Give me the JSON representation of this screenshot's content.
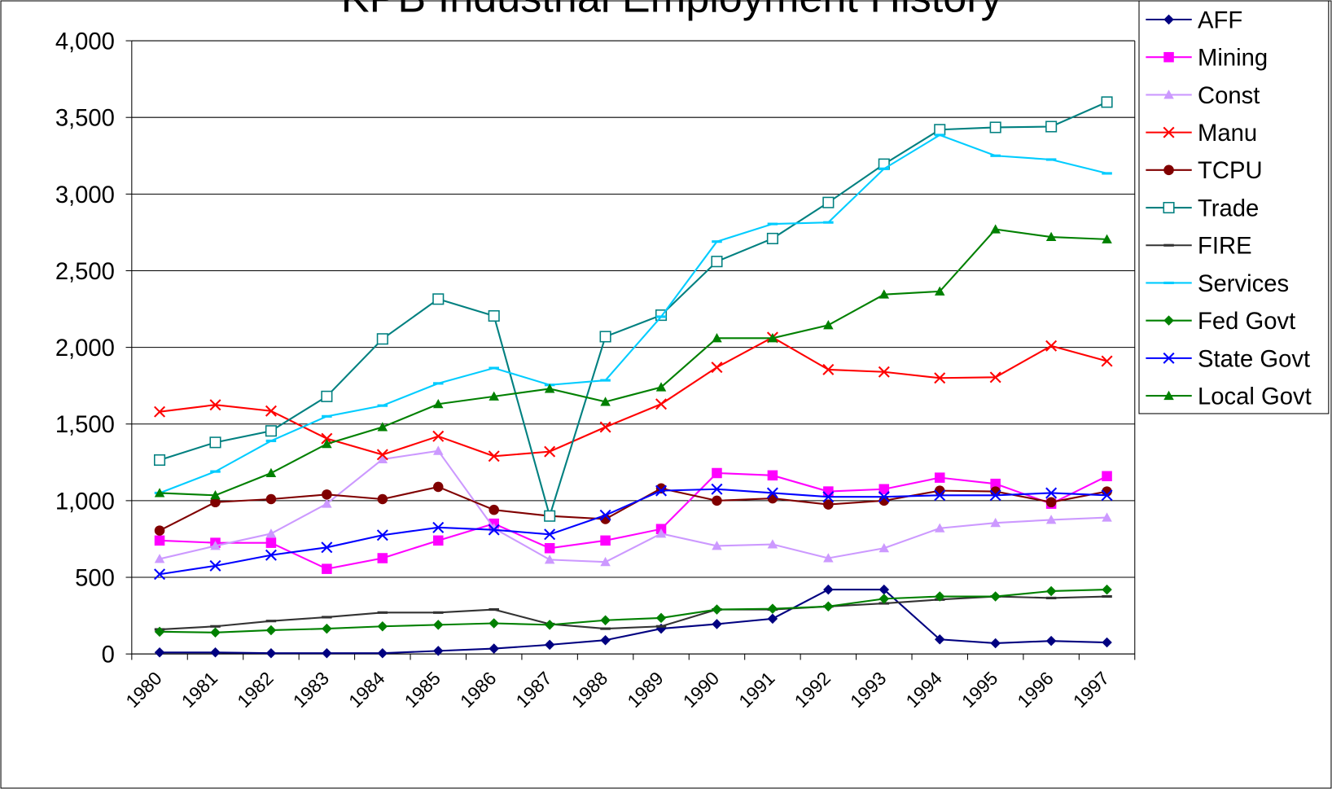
{
  "chart_data": {
    "type": "line",
    "title": "KPB Industrial Employment History",
    "categories": [
      "1980",
      "1981",
      "1982",
      "1983",
      "1984",
      "1985",
      "1986",
      "1987",
      "1988",
      "1989",
      "1990",
      "1991",
      "1992",
      "1993",
      "1994",
      "1995",
      "1996",
      "1997"
    ],
    "ylim": [
      0,
      4000
    ],
    "yticks": [
      0,
      500,
      {
        "value": 1000,
        "label": "1,000"
      },
      {
        "value": 1500,
        "label": "1,500"
      },
      {
        "value": 2000,
        "label": "2,000"
      },
      {
        "value": 2500,
        "label": "2,500"
      },
      {
        "value": 3000,
        "label": "3,000"
      },
      {
        "value": 3500,
        "label": "3,500"
      },
      {
        "value": 4000,
        "label": "4,000"
      }
    ],
    "grid": true,
    "legend": "right",
    "series": [
      {
        "name": "AFF",
        "color": "#000080",
        "marker": "diamond",
        "values": [
          10,
          10,
          5,
          5,
          5,
          20,
          35,
          60,
          90,
          165,
          195,
          230,
          420,
          420,
          95,
          70,
          85,
          75
        ]
      },
      {
        "name": "Mining",
        "color": "#ff00ff",
        "marker": "square",
        "values": [
          740,
          725,
          725,
          555,
          625,
          740,
          850,
          690,
          740,
          815,
          1180,
          1165,
          1060,
          1075,
          1150,
          1110,
          980,
          1160
        ]
      },
      {
        "name": "Const",
        "color": "#cc99ff",
        "marker": "triangle",
        "values": [
          620,
          705,
          785,
          980,
          1270,
          1325,
          820,
          615,
          600,
          785,
          705,
          715,
          625,
          690,
          820,
          855,
          875,
          890
        ]
      },
      {
        "name": "Manu",
        "color": "#ff0000",
        "marker": "x",
        "values": [
          1580,
          1625,
          1585,
          1405,
          1300,
          1420,
          1290,
          1320,
          1480,
          1630,
          1870,
          2065,
          1855,
          1840,
          1800,
          1805,
          2010,
          1910
        ]
      },
      {
        "name": "TCPU",
        "color": "#800000",
        "marker": "circle",
        "values": [
          805,
          990,
          1010,
          1040,
          1010,
          1090,
          940,
          900,
          880,
          1080,
          1000,
          1015,
          975,
          1000,
          1065,
          1060,
          990,
          1060
        ]
      },
      {
        "name": "Trade",
        "color": "#008080",
        "marker": "open-square",
        "values": [
          1265,
          1380,
          1455,
          1680,
          2055,
          2315,
          2205,
          900,
          2070,
          2210,
          2560,
          2710,
          2945,
          3195,
          3420,
          3435,
          3440,
          3600
        ]
      },
      {
        "name": "FIRE",
        "color": "#333333",
        "marker": "dash",
        "values": [
          160,
          180,
          215,
          240,
          270,
          270,
          290,
          195,
          165,
          180,
          290,
          290,
          310,
          330,
          355,
          375,
          365,
          375
        ]
      },
      {
        "name": "Services",
        "color": "#00ccff",
        "marker": "dash",
        "values": [
          1050,
          1190,
          1390,
          1550,
          1620,
          1765,
          1865,
          1755,
          1785,
          2200,
          2690,
          2805,
          2815,
          3165,
          3385,
          3250,
          3225,
          3135
        ]
      },
      {
        "name": "Fed Govt",
        "color": "#008000",
        "marker": "diamond",
        "values": [
          145,
          140,
          155,
          165,
          180,
          190,
          200,
          190,
          220,
          235,
          290,
          295,
          310,
          360,
          375,
          375,
          410,
          420
        ]
      },
      {
        "name": "State Govt",
        "color": "#0000ff",
        "marker": "x",
        "values": [
          520,
          575,
          645,
          695,
          775,
          825,
          810,
          780,
          905,
          1065,
          1075,
          1050,
          1025,
          1025,
          1035,
          1035,
          1050,
          1035
        ]
      },
      {
        "name": "Local Govt",
        "color": "#008000",
        "marker": "triangle",
        "values": [
          1050,
          1035,
          1180,
          1370,
          1480,
          1630,
          1680,
          1730,
          1645,
          1740,
          2060,
          2060,
          2145,
          2345,
          2365,
          2770,
          2720,
          2705
        ]
      }
    ]
  }
}
